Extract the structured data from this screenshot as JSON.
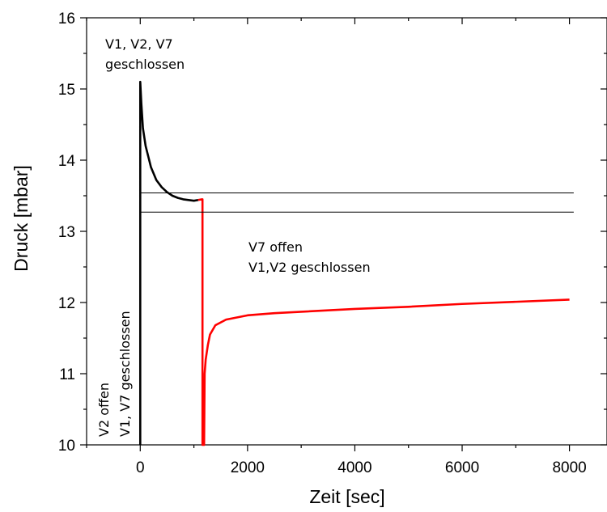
{
  "chart_data": {
    "type": "line",
    "xlabel": "Zeit [sec]",
    "ylabel": "Druck [mbar]",
    "xlim": [
      -1000,
      8700
    ],
    "ylim": [
      10,
      16
    ],
    "xticks": [
      0,
      2000,
      4000,
      6000,
      8000
    ],
    "yticks": [
      10,
      11,
      12,
      13,
      14,
      15,
      16
    ],
    "grid": false,
    "series": [
      {
        "color": "#000000",
        "points": [
          [
            0,
            10
          ],
          [
            0,
            12
          ],
          [
            0,
            15.1
          ],
          [
            20,
            14.8
          ],
          [
            50,
            14.45
          ],
          [
            100,
            14.2
          ],
          [
            150,
            14.05
          ],
          [
            200,
            13.9
          ],
          [
            300,
            13.72
          ],
          [
            400,
            13.62
          ],
          [
            500,
            13.55
          ],
          [
            600,
            13.5
          ],
          [
            700,
            13.47
          ],
          [
            800,
            13.45
          ],
          [
            900,
            13.44
          ],
          [
            1000,
            13.43
          ],
          [
            1080,
            13.44
          ]
        ]
      },
      {
        "color": "#ff0000",
        "points": [
          [
            1080,
            13.44
          ],
          [
            1150,
            13.45
          ],
          [
            1160,
            13.45
          ],
          [
            1160,
            10
          ],
          [
            1190,
            10
          ],
          [
            1200,
            11.0
          ],
          [
            1220,
            11.2
          ],
          [
            1260,
            11.4
          ],
          [
            1300,
            11.55
          ],
          [
            1400,
            11.68
          ],
          [
            1600,
            11.76
          ],
          [
            2000,
            11.82
          ],
          [
            2500,
            11.85
          ],
          [
            3000,
            11.87
          ],
          [
            4000,
            11.91
          ],
          [
            5000,
            11.94
          ],
          [
            6000,
            11.98
          ],
          [
            7000,
            12.01
          ],
          [
            8000,
            12.04
          ]
        ]
      },
      {
        "color": "#000000",
        "points": [
          [
            0,
            13.54
          ],
          [
            8080,
            13.54
          ]
        ]
      },
      {
        "color": "#000000",
        "points": [
          [
            0,
            13.27
          ],
          [
            8080,
            13.27
          ]
        ]
      }
    ],
    "annotations": [
      {
        "lines": [
          "V1, V2, V7",
          "geschlossen"
        ]
      },
      {
        "lines": [
          "V7 offen",
          "V1,V2 geschlossen"
        ]
      },
      {
        "lines": [
          "V2  offen",
          "V1, V7 geschlossen"
        ]
      }
    ]
  }
}
